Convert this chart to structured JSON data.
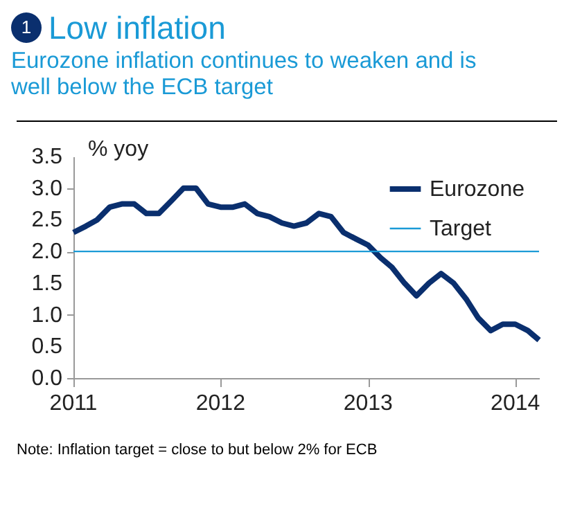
{
  "chart_data": {
    "type": "line",
    "title": "Low inflation",
    "subtitle": "Eurozone inflation continues to weaken and is well below the ECB target",
    "ylabel": "% yoy",
    "annotations": [
      "1",
      "Note: Inflation target = close to but below 2% for ECB"
    ],
    "x": [
      "2011-01",
      "2011-02",
      "2011-03",
      "2011-04",
      "2011-05",
      "2011-06",
      "2011-07",
      "2011-08",
      "2011-09",
      "2011-10",
      "2011-11",
      "2011-12",
      "2012-01",
      "2012-02",
      "2012-03",
      "2012-04",
      "2012-05",
      "2012-06",
      "2012-07",
      "2012-08",
      "2012-09",
      "2012-10",
      "2012-11",
      "2012-12",
      "2013-01",
      "2013-02",
      "2013-03",
      "2013-04",
      "2013-05",
      "2013-06",
      "2013-07",
      "2013-08",
      "2013-09",
      "2013-10",
      "2013-11",
      "2013-12",
      "2014-01",
      "2014-02",
      "2014-03"
    ],
    "series": [
      {
        "name": "Eurozone",
        "color": "#0a2f6e",
        "values": [
          2.3,
          2.4,
          2.5,
          2.7,
          2.75,
          2.75,
          2.6,
          2.6,
          2.8,
          3.0,
          3.0,
          2.75,
          2.7,
          2.7,
          2.75,
          2.6,
          2.55,
          2.45,
          2.4,
          2.45,
          2.6,
          2.55,
          2.3,
          2.2,
          2.1,
          1.9,
          1.75,
          1.5,
          1.3,
          1.5,
          1.65,
          1.5,
          1.25,
          0.95,
          0.75,
          0.85,
          0.85,
          0.75,
          0.6
        ]
      }
    ],
    "ref_lines": [
      {
        "axis": "y",
        "value": 2,
        "label": "Target",
        "color": "#1a9ad6"
      }
    ],
    "xlim": [
      "2011-01",
      "2014-03"
    ],
    "xticks": [
      "2011",
      "2012",
      "2013",
      "2014"
    ],
    "ylim": [
      0,
      3.5
    ],
    "yticks": [
      {
        "value": 0,
        "label": "0.0"
      },
      {
        "value": 0.5,
        "label": "0.5"
      },
      {
        "value": 1,
        "label": "1.0"
      },
      {
        "value": 1.5,
        "label": "1.5"
      },
      {
        "value": 2,
        "label": "2.0"
      },
      {
        "value": 2.5,
        "label": "2.5"
      },
      {
        "value": 3,
        "label": "3.0"
      },
      {
        "value": 3.5,
        "label": "3.5"
      }
    ],
    "legend": "top right",
    "grid": false,
    "marker": "none",
    "line_style": "solid"
  }
}
